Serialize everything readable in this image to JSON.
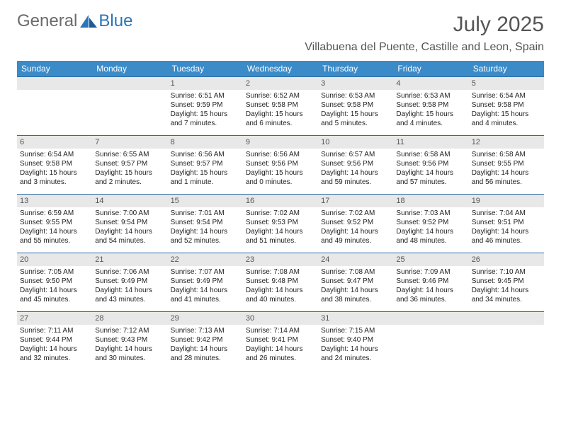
{
  "brand": {
    "general": "General",
    "blue": "Blue"
  },
  "title": "July 2025",
  "location": "Villabuena del Puente, Castille and Leon, Spain",
  "colors": {
    "header_bg": "#3b8bc9",
    "daynum_bg": "#e8e8e8",
    "rule": "#2e6da4",
    "title_color": "#555555",
    "logo_gray": "#6b6b6b",
    "logo_blue": "#2e75b6"
  },
  "weekdays": [
    "Sunday",
    "Monday",
    "Tuesday",
    "Wednesday",
    "Thursday",
    "Friday",
    "Saturday"
  ],
  "weeks": [
    [
      {
        "n": "",
        "sr": "",
        "ss": "",
        "dl": ""
      },
      {
        "n": "",
        "sr": "",
        "ss": "",
        "dl": ""
      },
      {
        "n": "1",
        "sr": "Sunrise: 6:51 AM",
        "ss": "Sunset: 9:59 PM",
        "dl": "Daylight: 15 hours and 7 minutes."
      },
      {
        "n": "2",
        "sr": "Sunrise: 6:52 AM",
        "ss": "Sunset: 9:58 PM",
        "dl": "Daylight: 15 hours and 6 minutes."
      },
      {
        "n": "3",
        "sr": "Sunrise: 6:53 AM",
        "ss": "Sunset: 9:58 PM",
        "dl": "Daylight: 15 hours and 5 minutes."
      },
      {
        "n": "4",
        "sr": "Sunrise: 6:53 AM",
        "ss": "Sunset: 9:58 PM",
        "dl": "Daylight: 15 hours and 4 minutes."
      },
      {
        "n": "5",
        "sr": "Sunrise: 6:54 AM",
        "ss": "Sunset: 9:58 PM",
        "dl": "Daylight: 15 hours and 4 minutes."
      }
    ],
    [
      {
        "n": "6",
        "sr": "Sunrise: 6:54 AM",
        "ss": "Sunset: 9:58 PM",
        "dl": "Daylight: 15 hours and 3 minutes."
      },
      {
        "n": "7",
        "sr": "Sunrise: 6:55 AM",
        "ss": "Sunset: 9:57 PM",
        "dl": "Daylight: 15 hours and 2 minutes."
      },
      {
        "n": "8",
        "sr": "Sunrise: 6:56 AM",
        "ss": "Sunset: 9:57 PM",
        "dl": "Daylight: 15 hours and 1 minute."
      },
      {
        "n": "9",
        "sr": "Sunrise: 6:56 AM",
        "ss": "Sunset: 9:56 PM",
        "dl": "Daylight: 15 hours and 0 minutes."
      },
      {
        "n": "10",
        "sr": "Sunrise: 6:57 AM",
        "ss": "Sunset: 9:56 PM",
        "dl": "Daylight: 14 hours and 59 minutes."
      },
      {
        "n": "11",
        "sr": "Sunrise: 6:58 AM",
        "ss": "Sunset: 9:56 PM",
        "dl": "Daylight: 14 hours and 57 minutes."
      },
      {
        "n": "12",
        "sr": "Sunrise: 6:58 AM",
        "ss": "Sunset: 9:55 PM",
        "dl": "Daylight: 14 hours and 56 minutes."
      }
    ],
    [
      {
        "n": "13",
        "sr": "Sunrise: 6:59 AM",
        "ss": "Sunset: 9:55 PM",
        "dl": "Daylight: 14 hours and 55 minutes."
      },
      {
        "n": "14",
        "sr": "Sunrise: 7:00 AM",
        "ss": "Sunset: 9:54 PM",
        "dl": "Daylight: 14 hours and 54 minutes."
      },
      {
        "n": "15",
        "sr": "Sunrise: 7:01 AM",
        "ss": "Sunset: 9:54 PM",
        "dl": "Daylight: 14 hours and 52 minutes."
      },
      {
        "n": "16",
        "sr": "Sunrise: 7:02 AM",
        "ss": "Sunset: 9:53 PM",
        "dl": "Daylight: 14 hours and 51 minutes."
      },
      {
        "n": "17",
        "sr": "Sunrise: 7:02 AM",
        "ss": "Sunset: 9:52 PM",
        "dl": "Daylight: 14 hours and 49 minutes."
      },
      {
        "n": "18",
        "sr": "Sunrise: 7:03 AM",
        "ss": "Sunset: 9:52 PM",
        "dl": "Daylight: 14 hours and 48 minutes."
      },
      {
        "n": "19",
        "sr": "Sunrise: 7:04 AM",
        "ss": "Sunset: 9:51 PM",
        "dl": "Daylight: 14 hours and 46 minutes."
      }
    ],
    [
      {
        "n": "20",
        "sr": "Sunrise: 7:05 AM",
        "ss": "Sunset: 9:50 PM",
        "dl": "Daylight: 14 hours and 45 minutes."
      },
      {
        "n": "21",
        "sr": "Sunrise: 7:06 AM",
        "ss": "Sunset: 9:49 PM",
        "dl": "Daylight: 14 hours and 43 minutes."
      },
      {
        "n": "22",
        "sr": "Sunrise: 7:07 AM",
        "ss": "Sunset: 9:49 PM",
        "dl": "Daylight: 14 hours and 41 minutes."
      },
      {
        "n": "23",
        "sr": "Sunrise: 7:08 AM",
        "ss": "Sunset: 9:48 PM",
        "dl": "Daylight: 14 hours and 40 minutes."
      },
      {
        "n": "24",
        "sr": "Sunrise: 7:08 AM",
        "ss": "Sunset: 9:47 PM",
        "dl": "Daylight: 14 hours and 38 minutes."
      },
      {
        "n": "25",
        "sr": "Sunrise: 7:09 AM",
        "ss": "Sunset: 9:46 PM",
        "dl": "Daylight: 14 hours and 36 minutes."
      },
      {
        "n": "26",
        "sr": "Sunrise: 7:10 AM",
        "ss": "Sunset: 9:45 PM",
        "dl": "Daylight: 14 hours and 34 minutes."
      }
    ],
    [
      {
        "n": "27",
        "sr": "Sunrise: 7:11 AM",
        "ss": "Sunset: 9:44 PM",
        "dl": "Daylight: 14 hours and 32 minutes."
      },
      {
        "n": "28",
        "sr": "Sunrise: 7:12 AM",
        "ss": "Sunset: 9:43 PM",
        "dl": "Daylight: 14 hours and 30 minutes."
      },
      {
        "n": "29",
        "sr": "Sunrise: 7:13 AM",
        "ss": "Sunset: 9:42 PM",
        "dl": "Daylight: 14 hours and 28 minutes."
      },
      {
        "n": "30",
        "sr": "Sunrise: 7:14 AM",
        "ss": "Sunset: 9:41 PM",
        "dl": "Daylight: 14 hours and 26 minutes."
      },
      {
        "n": "31",
        "sr": "Sunrise: 7:15 AM",
        "ss": "Sunset: 9:40 PM",
        "dl": "Daylight: 14 hours and 24 minutes."
      },
      {
        "n": "",
        "sr": "",
        "ss": "",
        "dl": ""
      },
      {
        "n": "",
        "sr": "",
        "ss": "",
        "dl": ""
      }
    ]
  ]
}
